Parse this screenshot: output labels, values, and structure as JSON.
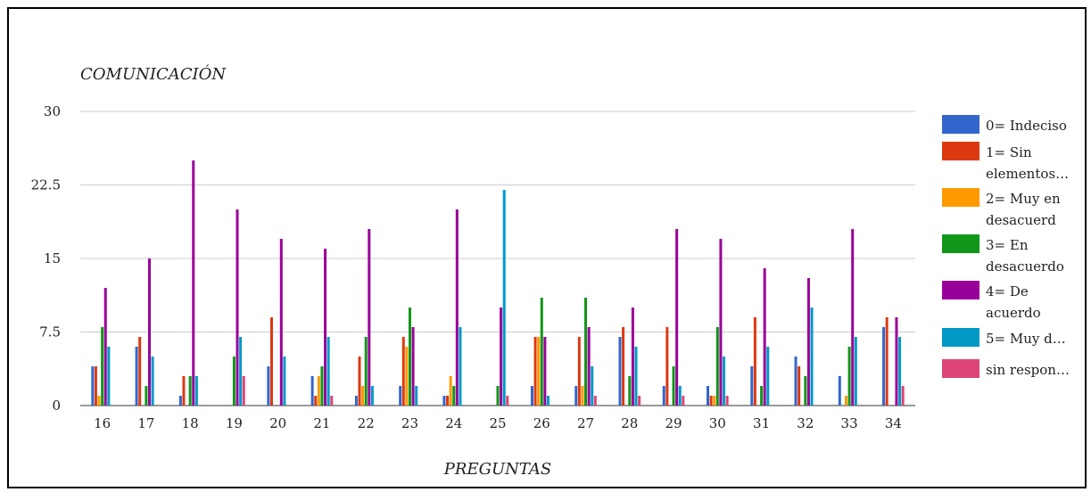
{
  "chart_data": {
    "type": "bar",
    "title": "COMUNICACIÓN",
    "xlabel": "PREGUNTAS",
    "ylabel": "",
    "ylim": [
      0,
      30
    ],
    "yticks": [
      "0",
      "7.5",
      "15",
      "22.5",
      "30"
    ],
    "ytick_values": [
      0,
      7.5,
      15,
      22.5,
      30
    ],
    "grid": true,
    "legend_position": "right",
    "categories": [
      "16",
      "17",
      "18",
      "19",
      "20",
      "21",
      "22",
      "23",
      "24",
      "25",
      "26",
      "27",
      "28",
      "29",
      "30",
      "31",
      "32",
      "33",
      "34"
    ],
    "series": [
      {
        "name": "0= Indeciso",
        "legend_lines": [
          "0= Indeciso"
        ],
        "color": "#3366cc",
        "values": [
          4,
          6,
          1,
          0,
          4,
          3,
          1,
          2,
          1,
          0,
          2,
          2,
          7,
          2,
          2,
          4,
          5,
          3,
          8
        ]
      },
      {
        "name": "1= Sin elementos…",
        "legend_lines": [
          "1= Sin",
          "elementos…"
        ],
        "color": "#dc3912",
        "values": [
          4,
          7,
          3,
          0,
          9,
          1,
          5,
          7,
          1,
          0,
          7,
          7,
          8,
          8,
          1,
          9,
          4,
          0,
          9
        ]
      },
      {
        "name": "2= Muy en desacuerd",
        "legend_lines": [
          "2= Muy en",
          "desacuerd"
        ],
        "color": "#ff9900",
        "values": [
          1,
          0,
          0,
          0,
          0,
          3,
          2,
          6,
          3,
          0,
          7,
          2,
          0,
          0,
          1,
          0,
          0,
          1,
          0
        ]
      },
      {
        "name": "3= En desacuerdo",
        "legend_lines": [
          "3= En",
          "desacuerdo"
        ],
        "color": "#109618",
        "values": [
          8,
          2,
          3,
          5,
          0,
          4,
          7,
          10,
          2,
          2,
          11,
          11,
          3,
          4,
          8,
          2,
          3,
          6,
          0
        ]
      },
      {
        "name": "4= De acuerdo",
        "legend_lines": [
          "4= De",
          "acuerdo"
        ],
        "color": "#990099",
        "values": [
          12,
          15,
          25,
          20,
          17,
          16,
          18,
          8,
          20,
          10,
          7,
          8,
          10,
          18,
          17,
          14,
          13,
          18,
          9
        ]
      },
      {
        "name": "5= Muy d…",
        "legend_lines": [
          "5= Muy d…"
        ],
        "color": "#0099c6",
        "values": [
          6,
          5,
          3,
          7,
          5,
          7,
          2,
          2,
          8,
          22,
          1,
          4,
          6,
          2,
          5,
          6,
          10,
          7,
          7
        ]
      },
      {
        "name": "sin respon…",
        "legend_lines": [
          "sin respon…"
        ],
        "color": "#dd4477",
        "values": [
          0,
          0,
          0,
          3,
          0,
          1,
          0,
          0,
          0,
          1,
          0,
          1,
          1,
          1,
          1,
          0,
          0,
          0,
          2
        ]
      }
    ]
  },
  "colors": {
    "grid": "#cccccc",
    "axis": "#333333"
  }
}
